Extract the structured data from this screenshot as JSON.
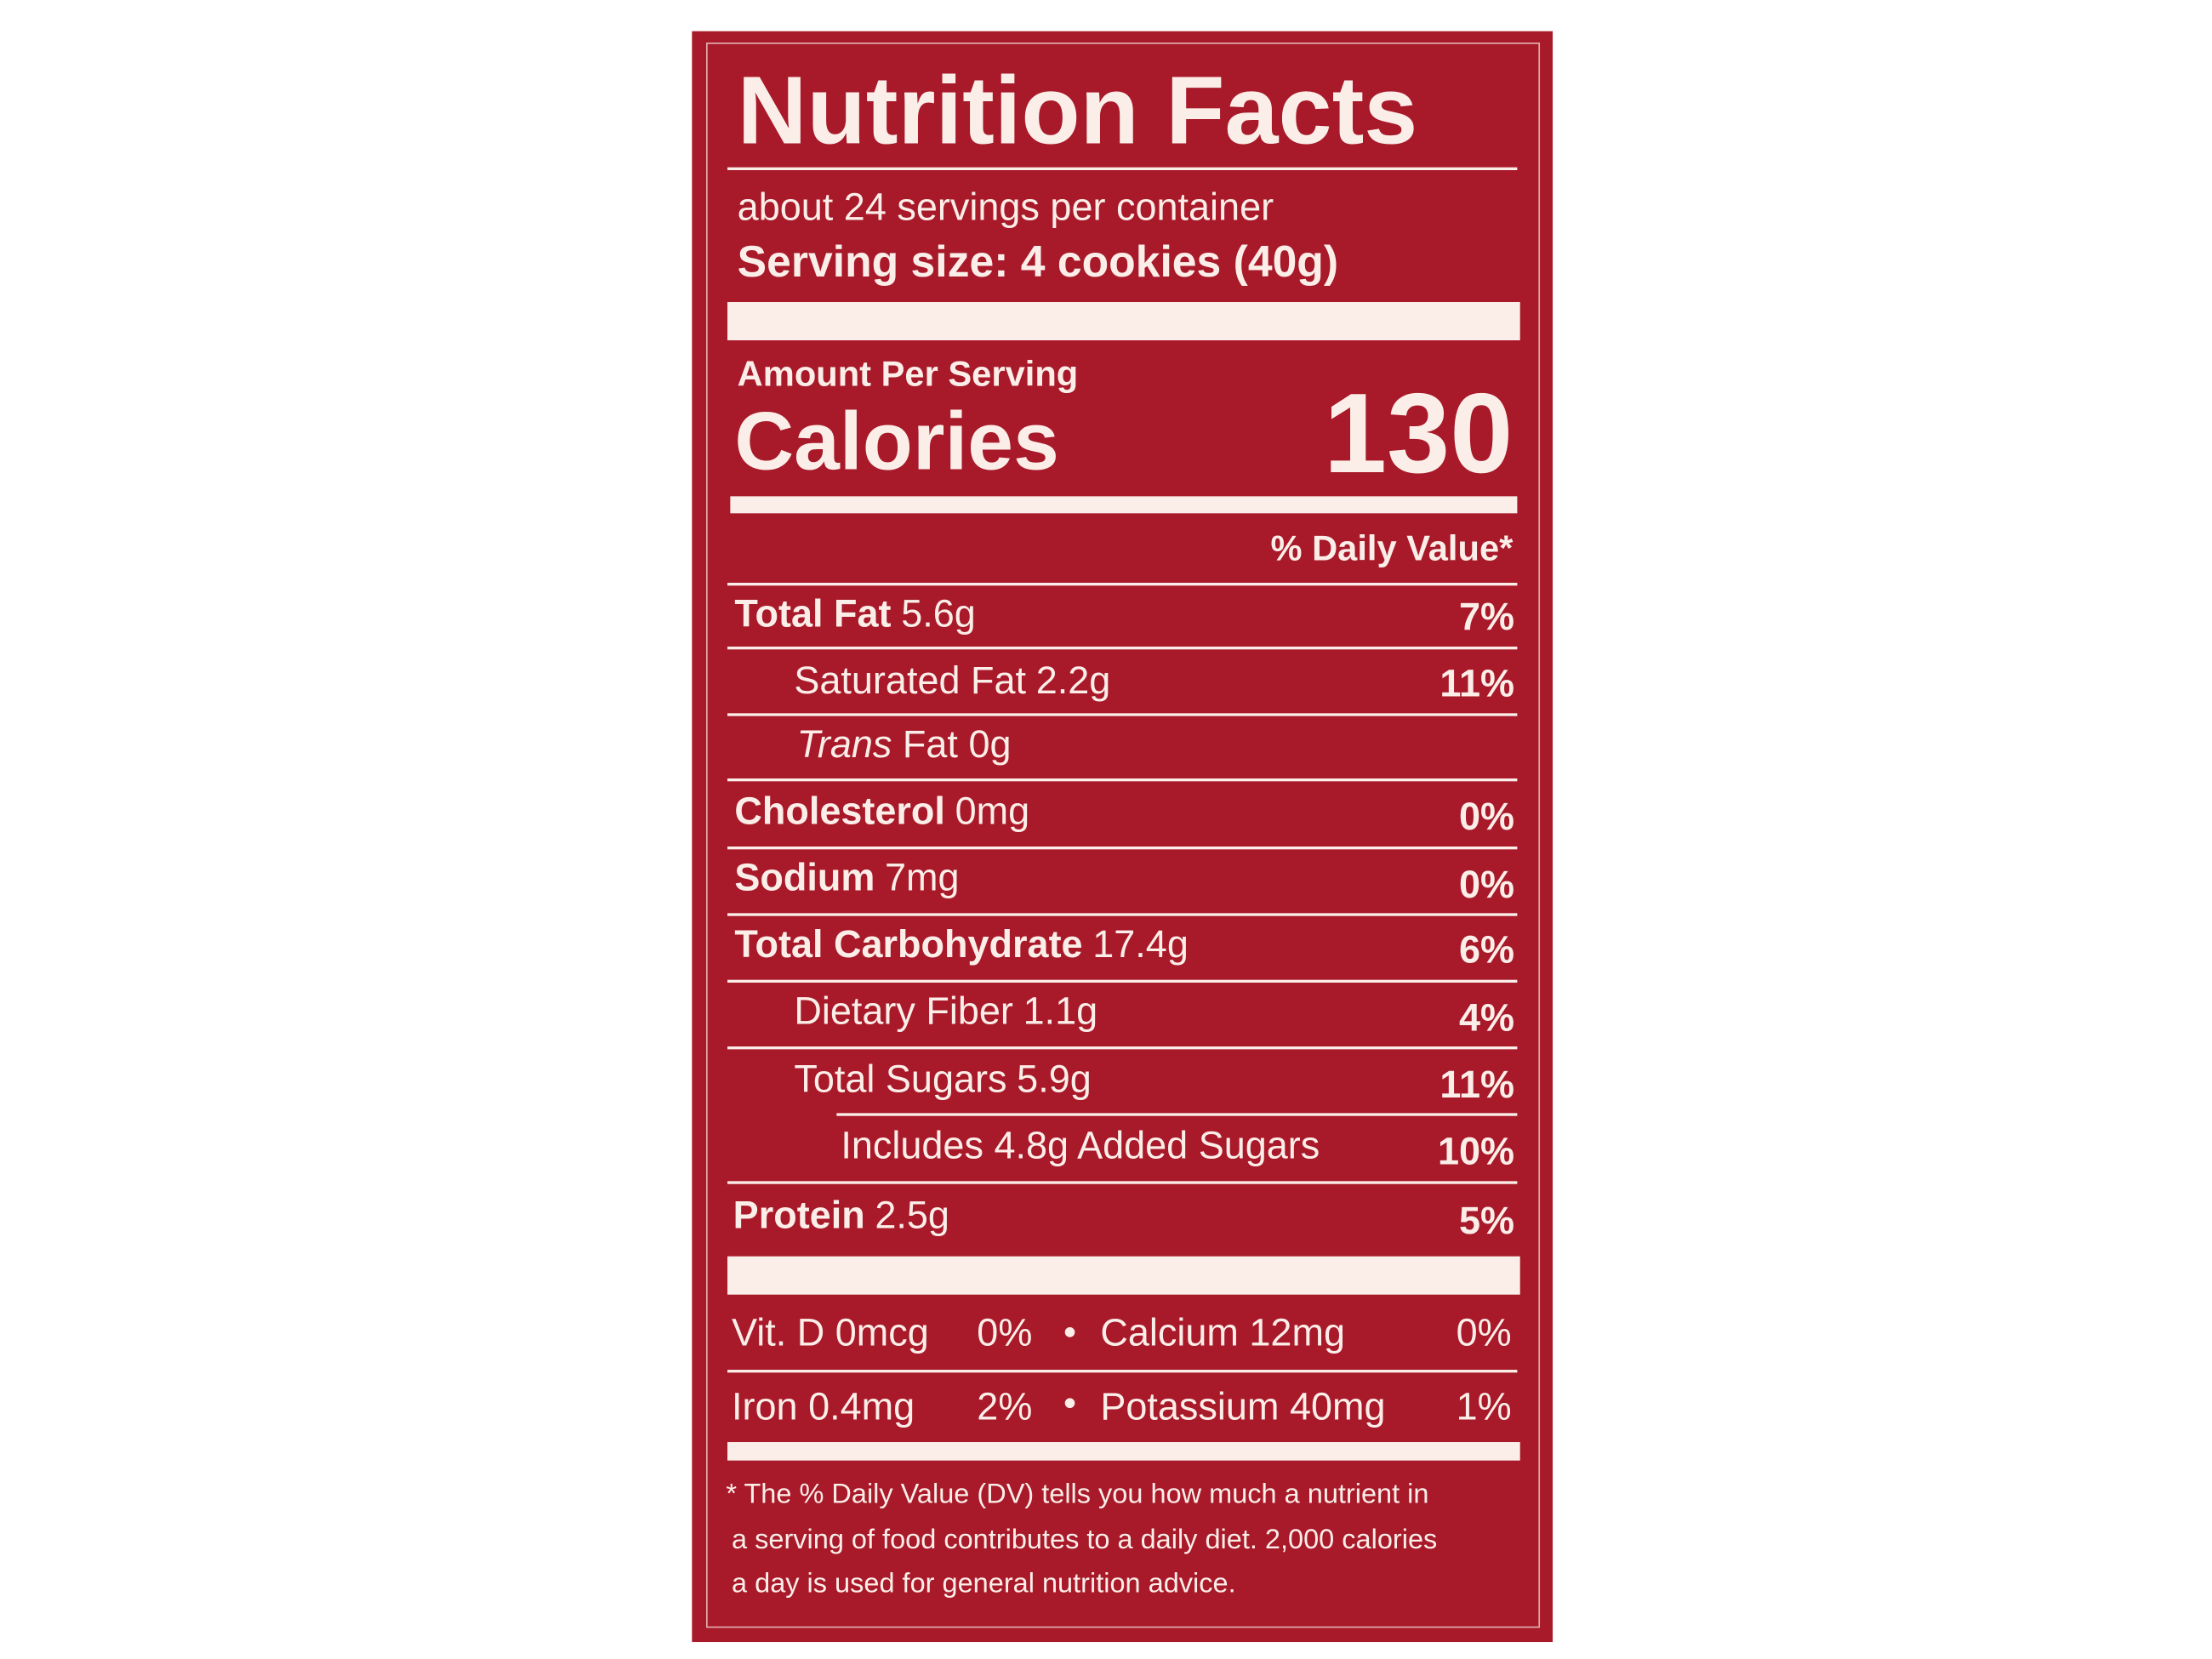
{
  "header": {
    "title": "Nutrition Facts",
    "servings": "about 24 servings per container",
    "serving_size": "Serving size: 4 cookies (40g)"
  },
  "calories": {
    "heading": "Amount Per Serving",
    "label": "Calories",
    "value": 130
  },
  "daily_value_header": "% Daily Value*",
  "nutrients": [
    {
      "name": "Total Fat",
      "amount": "5.6g",
      "dv": "7%"
    },
    {
      "name": "Saturated Fat",
      "amount": "2.2g",
      "dv": "11%"
    },
    {
      "name_italic": "Trans",
      "name": "Fat",
      "amount": "0g"
    },
    {
      "name": "Cholesterol",
      "amount": "0mg",
      "dv": "0%"
    },
    {
      "name": "Sodium",
      "amount": "7mg",
      "dv": "0%"
    },
    {
      "name": "Total Carbohydrate",
      "amount": "17.4g",
      "dv": "6%"
    },
    {
      "name": "Dietary Fiber",
      "amount": "1.1g",
      "dv": "4%"
    },
    {
      "name": "Total Sugars",
      "amount": "5.9g",
      "dv": "11%"
    },
    {
      "name": "Includes 4.8g Added Sugars",
      "dv": "10%"
    },
    {
      "name": "Protein",
      "amount": "2.5g",
      "dv": "5%"
    }
  ],
  "vitamins": [
    {
      "name": "Vit. D 0mcg",
      "dv": "0%"
    },
    {
      "name": "Calcium 12mg",
      "dv": "0%"
    },
    {
      "name": "Iron 0.4mg",
      "dv": "2%"
    },
    {
      "name": "Potassium 40mg",
      "dv": "1%"
    }
  ],
  "footnote": [
    "* The %  Daily Value (DV) tells you how much a nutrient in",
    "a serving of food contributes to a daily diet. 2,000 calories",
    "a day is used for general nutrition advice."
  ]
}
